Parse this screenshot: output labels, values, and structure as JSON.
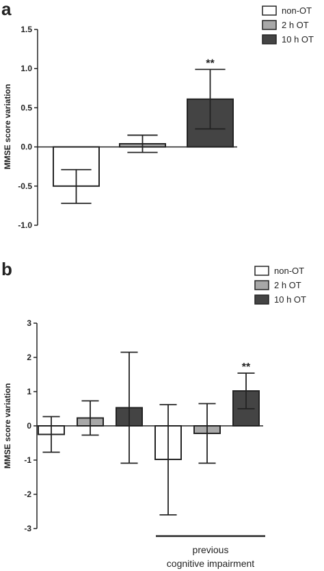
{
  "colors": {
    "non_ot": "#ffffff",
    "ot_2h": "#a8a8a8",
    "ot_10h": "#444444",
    "stroke": "#222222"
  },
  "chart_data": [
    {
      "type": "bar",
      "panel": "a",
      "ylabel": "MMSE score variation",
      "ylim": [
        -1.0,
        1.5
      ],
      "yticks": [
        "1.5",
        "1.0",
        "0.5",
        "0.0",
        "-0.5",
        "-1.0"
      ],
      "ytick_values": [
        1.5,
        1.0,
        0.5,
        0.0,
        -0.5,
        -1.0
      ],
      "legend": [
        "non-OT",
        "2 h OT",
        "10 h OT"
      ],
      "legend_position": "top-right",
      "series": [
        {
          "name": "non-OT",
          "value": -0.5,
          "err_low": -0.72,
          "err_high": -0.29
        },
        {
          "name": "2 h OT",
          "value": 0.04,
          "err_low": -0.07,
          "err_high": 0.15
        },
        {
          "name": "10 h OT",
          "value": 0.61,
          "err_low": 0.23,
          "err_high": 0.99,
          "annotation": "**"
        }
      ]
    },
    {
      "type": "bar",
      "panel": "b",
      "ylabel": "MMSE score variation",
      "ylim": [
        -3,
        3
      ],
      "yticks": [
        "3",
        "2",
        "1",
        "0",
        "-1",
        "-2",
        "-3"
      ],
      "ytick_values": [
        3,
        2,
        1,
        0,
        -1,
        -2,
        -3
      ],
      "legend": [
        "non-OT",
        "2 h OT",
        "10 h OT"
      ],
      "legend_position": "top-right",
      "group_label_lines": [
        "previous",
        "cognitive impairment"
      ],
      "series": [
        {
          "name": "non-OT",
          "value": -0.25,
          "err_low": -0.77,
          "err_high": 0.27
        },
        {
          "name": "2 h OT",
          "value": 0.23,
          "err_low": -0.27,
          "err_high": 0.73
        },
        {
          "name": "10 h OT",
          "value": 0.53,
          "err_low": -1.09,
          "err_high": 2.15
        },
        {
          "name": "non-OT",
          "value": -0.98,
          "err_low": -2.6,
          "err_high": 0.62
        },
        {
          "name": "2 h OT",
          "value": -0.22,
          "err_low": -1.09,
          "err_high": 0.65
        },
        {
          "name": "10 h OT",
          "value": 1.02,
          "err_low": 0.5,
          "err_high": 1.54,
          "annotation": "**"
        }
      ]
    }
  ]
}
